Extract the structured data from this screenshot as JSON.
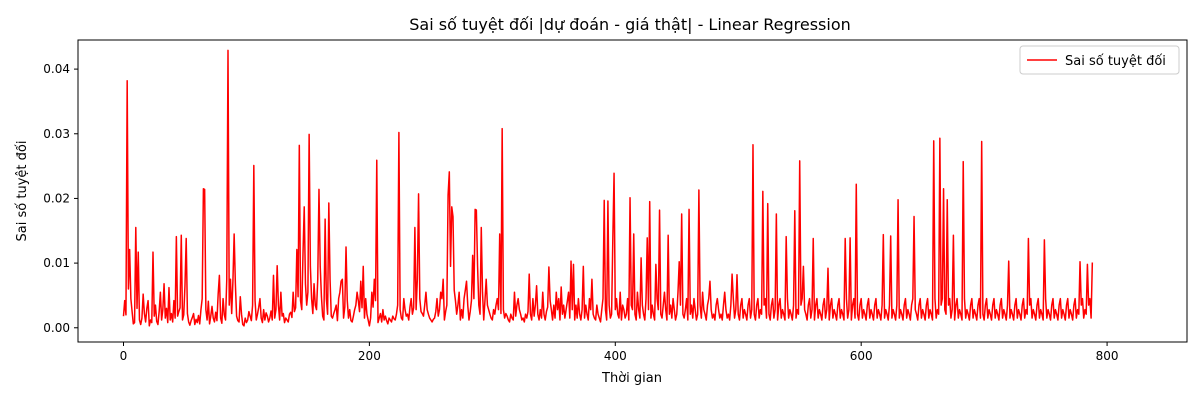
{
  "chart_data": {
    "type": "line",
    "title": "Sai số tuyệt đối |dự đoán - giá thật| - Linear Regression",
    "xlabel": "Thời gian",
    "ylabel": "Sai số tuyệt đối",
    "xlim": [
      -37,
      865
    ],
    "ylim": [
      -0.0022,
      0.0445
    ],
    "x_ticks": [
      0,
      200,
      400,
      600,
      800
    ],
    "x_tick_labels": [
      "0",
      "200",
      "400",
      "600",
      "800"
    ],
    "y_ticks": [
      0.0,
      0.01,
      0.02,
      0.03,
      0.04
    ],
    "y_tick_labels": [
      "0.00",
      "0.01",
      "0.02",
      "0.03",
      "0.04"
    ],
    "grid": false,
    "legend_position": "top-right",
    "series": [
      {
        "name": "Sai số tuyệt đối",
        "color": "#ff0000",
        "x_start": 0,
        "x_step": 1,
        "y": [
          0.0018,
          0.0042,
          0.002,
          0.0382,
          0.006,
          0.0121,
          0.0045,
          0.0025,
          0.0006,
          0.0008,
          0.0155,
          0.003,
          0.0117,
          0.0012,
          0.0005,
          0.0015,
          0.0052,
          0.0022,
          0.0009,
          0.003,
          0.0042,
          0.0003,
          0.0012,
          0.0008,
          0.0117,
          0.0018,
          0.0035,
          0.001,
          0.0005,
          0.0025,
          0.0055,
          0.0012,
          0.0028,
          0.0068,
          0.0015,
          0.003,
          0.0008,
          0.0062,
          0.0012,
          0.0022,
          0.0009,
          0.0042,
          0.0015,
          0.0141,
          0.0018,
          0.0025,
          0.0031,
          0.0143,
          0.0012,
          0.002,
          0.0065,
          0.0138,
          0.0022,
          0.0009,
          0.0004,
          0.0011,
          0.0016,
          0.0022,
          0.0005,
          0.0013,
          0.0008,
          0.0019,
          0.0006,
          0.0028,
          0.0045,
          0.0215,
          0.0214,
          0.0028,
          0.0012,
          0.0041,
          0.0006,
          0.0018,
          0.0033,
          0.0015,
          0.0009,
          0.0024,
          0.0011,
          0.0052,
          0.0081,
          0.0015,
          0.0007,
          0.0045,
          0.002,
          0.0012,
          0.0075,
          0.0429,
          0.0035,
          0.0075,
          0.0022,
          0.0072,
          0.0145,
          0.0068,
          0.0018,
          0.0011,
          0.0009,
          0.0048,
          0.0021,
          0.0005,
          0.0003,
          0.0015,
          0.0008,
          0.0012,
          0.0025,
          0.0018,
          0.0011,
          0.0035,
          0.0251,
          0.0042,
          0.0012,
          0.0021,
          0.0032,
          0.0045,
          0.0015,
          0.0008,
          0.0028,
          0.0012,
          0.0023,
          0.0018,
          0.0009,
          0.0015,
          0.0026,
          0.0012,
          0.0081,
          0.0015,
          0.0028,
          0.0096,
          0.0035,
          0.0012,
          0.0055,
          0.0018,
          0.0022,
          0.0008,
          0.0015,
          0.0012,
          0.0009,
          0.0021,
          0.0024,
          0.0016,
          0.0055,
          0.0025,
          0.0031,
          0.0121,
          0.0048,
          0.0282,
          0.0042,
          0.0028,
          0.0115,
          0.0187,
          0.0068,
          0.0035,
          0.0055,
          0.0299,
          0.0095,
          0.0045,
          0.0022,
          0.0068,
          0.0035,
          0.0028,
          0.0075,
          0.0214,
          0.0095,
          0.0048,
          0.0018,
          0.0012,
          0.0168,
          0.0045,
          0.0021,
          0.0193,
          0.0075,
          0.0018,
          0.0015,
          0.0022,
          0.0028,
          0.0035,
          0.0011,
          0.0045,
          0.0055,
          0.0072,
          0.0075,
          0.0015,
          0.0032,
          0.0125,
          0.0042,
          0.0015,
          0.0028,
          0.0011,
          0.0009,
          0.0018,
          0.0028,
          0.0035,
          0.0055,
          0.0042,
          0.0025,
          0.0072,
          0.0031,
          0.0095,
          0.0015,
          0.0045,
          0.0021,
          0.0012,
          0.0003,
          0.0015,
          0.0055,
          0.0032,
          0.0075,
          0.0042,
          0.0259,
          0.0008,
          0.0015,
          0.0022,
          0.0009,
          0.0028,
          0.0012,
          0.0018,
          0.0011,
          0.0006,
          0.0015,
          0.0012,
          0.0009,
          0.0018,
          0.0014,
          0.0012,
          0.0021,
          0.0035,
          0.0302,
          0.0028,
          0.0015,
          0.0012,
          0.0045,
          0.0028,
          0.0018,
          0.0021,
          0.0012,
          0.0032,
          0.0045,
          0.0021,
          0.0031,
          0.0155,
          0.0028,
          0.0075,
          0.0207,
          0.0045,
          0.0025,
          0.0022,
          0.0018,
          0.0035,
          0.0055,
          0.0028,
          0.0021,
          0.0015,
          0.0012,
          0.0009,
          0.0013,
          0.0015,
          0.0025,
          0.0045,
          0.0018,
          0.0028,
          0.0055,
          0.0045,
          0.0075,
          0.0012,
          0.0025,
          0.0035,
          0.0205,
          0.0241,
          0.0095,
          0.0187,
          0.0172,
          0.0058,
          0.0042,
          0.0021,
          0.0035,
          0.0055,
          0.0012,
          0.0028,
          0.0015,
          0.0045,
          0.0058,
          0.0072,
          0.0035,
          0.0012,
          0.0025,
          0.0042,
          0.0112,
          0.0045,
          0.0183,
          0.0182,
          0.0095,
          0.0035,
          0.0021,
          0.0155,
          0.0055,
          0.0012,
          0.0042,
          0.0075,
          0.0035,
          0.0028,
          0.0021,
          0.0015,
          0.0012,
          0.0028,
          0.0021,
          0.0035,
          0.0045,
          0.0028,
          0.0145,
          0.0022,
          0.0308,
          0.0028,
          0.0015,
          0.0022,
          0.0018,
          0.0012,
          0.0009,
          0.0021,
          0.0015,
          0.0012,
          0.0055,
          0.0018,
          0.0035,
          0.0045,
          0.0028,
          0.0021,
          0.0012,
          0.0015,
          0.0009,
          0.0021,
          0.0015,
          0.0025,
          0.0083,
          0.0021,
          0.0012,
          0.0045,
          0.0018,
          0.0035,
          0.0065,
          0.0021,
          0.0012,
          0.0028,
          0.0015,
          0.0055,
          0.0021,
          0.0012,
          0.0025,
          0.0032,
          0.0094,
          0.0042,
          0.0028,
          0.0012,
          0.0035,
          0.0015,
          0.0055,
          0.0028,
          0.0045,
          0.0012,
          0.0063,
          0.0021,
          0.0035,
          0.0015,
          0.0028,
          0.0041,
          0.0055,
          0.0015,
          0.0103,
          0.0028,
          0.0098,
          0.0012,
          0.0035,
          0.0015,
          0.0045,
          0.0021,
          0.0012,
          0.0028,
          0.0095,
          0.0015,
          0.0035,
          0.0021,
          0.0012,
          0.0045,
          0.0028,
          0.0075,
          0.0021,
          0.0015,
          0.0012,
          0.0035,
          0.0021,
          0.0015,
          0.0009,
          0.0028,
          0.0045,
          0.0197,
          0.0028,
          0.0012,
          0.0196,
          0.0035,
          0.0015,
          0.0021,
          0.0138,
          0.0239,
          0.0028,
          0.0045,
          0.0021,
          0.0015,
          0.0055,
          0.0012,
          0.0035,
          0.0028,
          0.0015,
          0.0021,
          0.0045,
          0.0012,
          0.0201,
          0.0035,
          0.0028,
          0.0145,
          0.0021,
          0.0012,
          0.0055,
          0.0028,
          0.0015,
          0.0108,
          0.0035,
          0.0021,
          0.0012,
          0.0045,
          0.0139,
          0.0028,
          0.0195,
          0.0015,
          0.0035,
          0.0021,
          0.0012,
          0.0098,
          0.0045,
          0.0028,
          0.0182,
          0.0021,
          0.0015,
          0.0035,
          0.0055,
          0.0028,
          0.0012,
          0.0143,
          0.0021,
          0.0035,
          0.0015,
          0.0045,
          0.0028,
          0.0012,
          0.0021,
          0.0055,
          0.0102,
          0.0035,
          0.0176,
          0.0021,
          0.0015,
          0.0028,
          0.0045,
          0.0012,
          0.0183,
          0.0021,
          0.0035,
          0.0015,
          0.0045,
          0.0028,
          0.0012,
          0.0021,
          0.0213,
          0.0035,
          0.0015,
          0.0055,
          0.0028,
          0.0021,
          0.0012,
          0.0035,
          0.0045,
          0.0072,
          0.0028,
          0.0015,
          0.0021,
          0.0012,
          0.0035,
          0.0045,
          0.0028,
          0.0015,
          0.0021,
          0.0012,
          0.0035,
          0.0055,
          0.0028,
          0.0015,
          0.0021,
          0.0012,
          0.0035,
          0.0083,
          0.0045,
          0.0015,
          0.0028,
          0.0082,
          0.0021,
          0.0012,
          0.0035,
          0.0045,
          0.0015,
          0.0028,
          0.0021,
          0.0012,
          0.0035,
          0.0045,
          0.0015,
          0.0028,
          0.0283,
          0.0021,
          0.0012,
          0.0035,
          0.0045,
          0.0015,
          0.0028,
          0.0021,
          0.0211,
          0.0035,
          0.0045,
          0.0015,
          0.0192,
          0.0021,
          0.0012,
          0.0035,
          0.0045,
          0.0015,
          0.0028,
          0.0176,
          0.0012,
          0.0035,
          0.0045,
          0.0015,
          0.0028,
          0.0021,
          0.0012,
          0.0141,
          0.0045,
          0.0015,
          0.0028,
          0.0021,
          0.0012,
          0.0035,
          0.0181,
          0.0015,
          0.0028,
          0.0021,
          0.0258,
          0.0035,
          0.0045,
          0.0095,
          0.0028,
          0.0021,
          0.0012,
          0.0035,
          0.0045,
          0.0015,
          0.0028,
          0.0138,
          0.0012,
          0.0035,
          0.0045,
          0.0015,
          0.0028,
          0.0021,
          0.0012,
          0.0035,
          0.0045,
          0.0015,
          0.0028,
          0.0092,
          0.0012,
          0.0035,
          0.0045,
          0.0015,
          0.0028,
          0.0021,
          0.0012,
          0.0035,
          0.0045,
          0.0015,
          0.0028,
          0.0021,
          0.0012,
          0.0138,
          0.0045,
          0.0015,
          0.0028,
          0.0139,
          0.0012,
          0.0035,
          0.0045,
          0.0015,
          0.0222,
          0.0021,
          0.0012,
          0.0035,
          0.0045,
          0.0015,
          0.0028,
          0.0021,
          0.0012,
          0.0035,
          0.0045,
          0.0015,
          0.0028,
          0.0021,
          0.0012,
          0.0035,
          0.0045,
          0.0015,
          0.0028,
          0.0021,
          0.0012,
          0.0035,
          0.0144,
          0.0015,
          0.0028,
          0.0021,
          0.0012,
          0.0035,
          0.0142,
          0.0015,
          0.0028,
          0.0021,
          0.0012,
          0.0035,
          0.0198,
          0.0015,
          0.0028,
          0.0021,
          0.0012,
          0.0035,
          0.0045,
          0.0015,
          0.0028,
          0.0021,
          0.0012,
          0.0035,
          0.0045,
          0.0172,
          0.0028,
          0.0021,
          0.0012,
          0.0035,
          0.0045,
          0.0015,
          0.0028,
          0.0021,
          0.0012,
          0.0035,
          0.0045,
          0.0015,
          0.0028,
          0.0021,
          0.0012,
          0.0289,
          0.0045,
          0.0015,
          0.0028,
          0.0021,
          0.0293,
          0.0035,
          0.0045,
          0.0215,
          0.0028,
          0.0021,
          0.0198,
          0.0035,
          0.0045,
          0.0015,
          0.0028,
          0.0143,
          0.0012,
          0.0035,
          0.0045,
          0.0015,
          0.0028,
          0.0021,
          0.0012,
          0.0257,
          0.0045,
          0.0015,
          0.0028,
          0.0021,
          0.0012,
          0.0035,
          0.0045,
          0.0015,
          0.0028,
          0.0021,
          0.0012,
          0.0035,
          0.0045,
          0.0015,
          0.0288,
          0.0021,
          0.0012,
          0.0035,
          0.0045,
          0.0015,
          0.0028,
          0.0021,
          0.0012,
          0.0035,
          0.0045,
          0.0015,
          0.0028,
          0.0021,
          0.0012,
          0.0035,
          0.0045,
          0.0015,
          0.0028,
          0.0021,
          0.0012,
          0.0035,
          0.0103,
          0.0015,
          0.0028,
          0.0021,
          0.0012,
          0.0035,
          0.0045,
          0.0015,
          0.0028,
          0.0021,
          0.0012,
          0.0035,
          0.0045,
          0.0015,
          0.0028,
          0.0021,
          0.0138,
          0.0035,
          0.0045,
          0.0015,
          0.0028,
          0.0021,
          0.0012,
          0.0035,
          0.0045,
          0.0015,
          0.0028,
          0.0021,
          0.0012,
          0.0136,
          0.0045,
          0.0015,
          0.0028,
          0.0021,
          0.0012,
          0.0035,
          0.0045,
          0.0015,
          0.0028,
          0.0021,
          0.0012,
          0.0035,
          0.0045,
          0.0015,
          0.0028,
          0.0021,
          0.0012,
          0.0035,
          0.0045,
          0.0015,
          0.0028,
          0.0021,
          0.0012,
          0.0035,
          0.0045,
          0.0015,
          0.0028,
          0.0021,
          0.0102,
          0.0035,
          0.0045,
          0.0015,
          0.0028,
          0.0021,
          0.0098,
          0.0035,
          0.0045,
          0.0015,
          0.0101
        ]
      }
    ]
  }
}
